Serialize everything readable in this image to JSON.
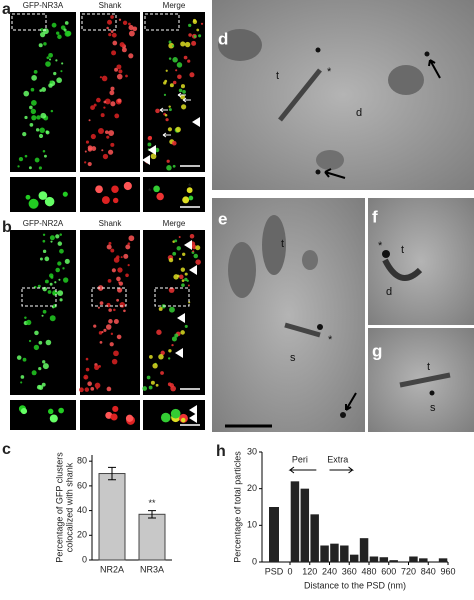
{
  "panel_labels": [
    "a",
    "b",
    "c",
    "d",
    "e",
    "f",
    "g",
    "h"
  ],
  "panel_a": {
    "headers": [
      "GFP-NR3A",
      "Shank",
      "Merge"
    ],
    "inset_marks": [
      "*",
      "*"
    ]
  },
  "panel_b": {
    "headers": [
      "GFP-NR2A",
      "Shank",
      "Merge"
    ]
  },
  "panel_d": {
    "labels": [
      "t",
      "*",
      "d"
    ]
  },
  "panel_e": {
    "labels": [
      "t",
      "*",
      "s"
    ]
  },
  "panel_f": {
    "labels": [
      "*",
      "t",
      "d"
    ]
  },
  "panel_g": {
    "labels": [
      "t",
      "s"
    ]
  },
  "chart_data": [
    {
      "type": "bar",
      "ylabel": [
        "Percentage of GFP clusters",
        "colocalized with shank"
      ],
      "categories": [
        "NR2A",
        "NR3A"
      ],
      "values": [
        70,
        37
      ],
      "errors": [
        5,
        3
      ],
      "color": "#c8c8c8",
      "ylim": [
        0,
        85
      ],
      "yticks": [
        0,
        20,
        40,
        60,
        80
      ],
      "annotation": "**"
    },
    {
      "type": "histogram",
      "xlabel": "Distance to the PSD (nm)",
      "ylabel": "Percentage of total particles",
      "categories": [
        "PSD"
      ],
      "category_values": [
        15
      ],
      "bins": [
        0,
        60,
        120,
        180,
        240,
        300,
        360,
        420,
        480,
        540,
        600,
        660,
        720,
        780,
        840,
        900,
        960
      ],
      "values": [
        22,
        20,
        13,
        4.5,
        5,
        4.5,
        2,
        6.5,
        1.5,
        1.3,
        0.5,
        0,
        1.5,
        1,
        0,
        1
      ],
      "color": "#222222",
      "xlim": [
        0,
        960
      ],
      "xticks": [
        0,
        120,
        240,
        360,
        480,
        600,
        720,
        840,
        960
      ],
      "ylim": [
        0,
        30
      ],
      "yticks": [
        0,
        10,
        20,
        30
      ],
      "annotations": [
        "Peri",
        "Extra"
      ]
    }
  ]
}
